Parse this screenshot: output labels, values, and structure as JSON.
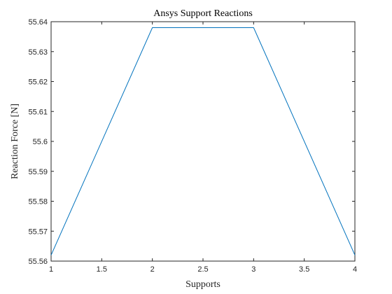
{
  "chart_data": {
    "type": "line",
    "title": "Ansys Support Reactions",
    "xlabel": "Supports",
    "ylabel": "Reaction Force [N]",
    "xlim": [
      1,
      4
    ],
    "ylim": [
      55.56,
      55.64
    ],
    "xticks": [
      "1",
      "1.5",
      "2",
      "2.5",
      "3",
      "3.5",
      "4"
    ],
    "yticks": [
      "55.56",
      "55.57",
      "55.58",
      "55.59",
      "55.6",
      "55.61",
      "55.62",
      "55.63",
      "55.64"
    ],
    "grid": false,
    "legend": "none",
    "series": [
      {
        "color": "#0072BD",
        "x": [
          1,
          2,
          3,
          4
        ],
        "y": [
          55.562,
          55.638,
          55.638,
          55.562
        ]
      }
    ]
  }
}
